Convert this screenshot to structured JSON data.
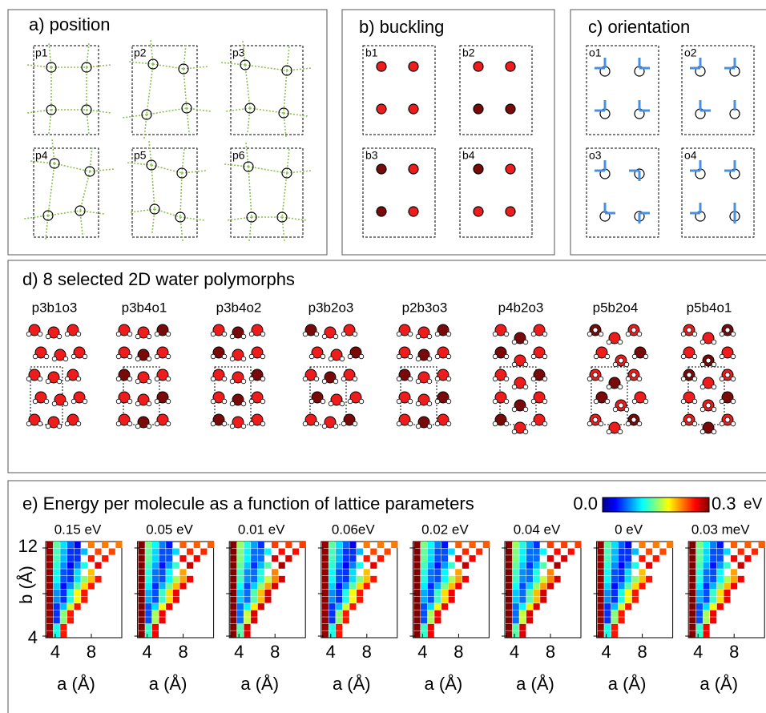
{
  "panels": {
    "a": {
      "title": "a) position",
      "labels": [
        "p1",
        "p2",
        "p3",
        "p4",
        "p5",
        "p6"
      ]
    },
    "b": {
      "title": "b) buckling",
      "labels": [
        "b1",
        "b2",
        "b3",
        "b4"
      ]
    },
    "c": {
      "title": "c) orientation",
      "labels": [
        "o1",
        "o2",
        "o3",
        "o4"
      ]
    },
    "d": {
      "title": "d) 8 selected 2D water polymorphs",
      "names": [
        "p3b1o3",
        "p3b4o1",
        "p3b4o2",
        "p3b2o3",
        "p2b3o3",
        "p4b2o3",
        "p5b2o4",
        "p5b4o1"
      ]
    },
    "e": {
      "title": "e) Energy per molecule as a function of lattice parameters",
      "colorbar": {
        "min": "0.0",
        "max": "0.3",
        "unit": "eV"
      },
      "energies": [
        "0.15 eV",
        "0.05 eV",
        "0.01 eV",
        "0.06eV",
        "0.02 eV",
        "0.04 eV",
        "0 eV",
        "0.03 meV"
      ],
      "x_label": "a (Å)",
      "y_label": "b (Å)",
      "xticks": [
        "4",
        "8"
      ],
      "yticks": [
        "12",
        "4"
      ]
    }
  }
}
